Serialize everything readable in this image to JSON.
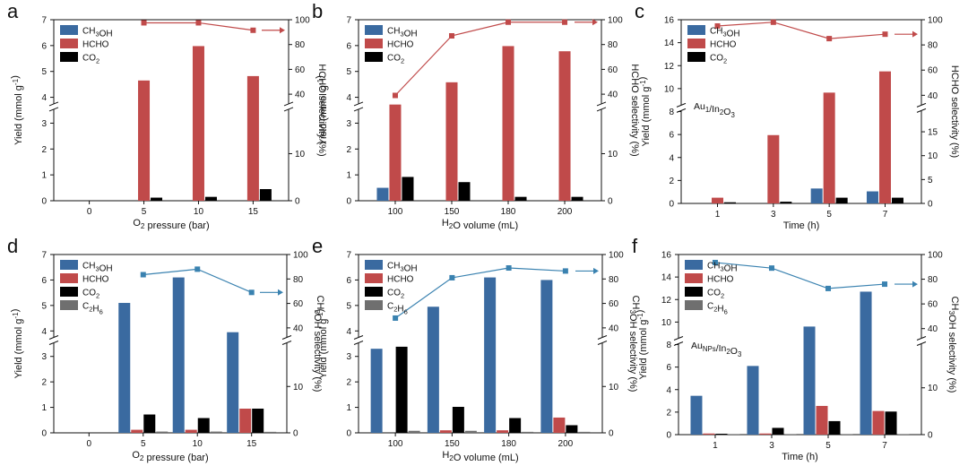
{
  "colors": {
    "CH3OH": "#3a6aa0",
    "HCHO": "#c04a4a",
    "CO2": "#000000",
    "C2H6": "#6f6f6f",
    "sel_red": "#c04a4a",
    "sel_blue": "#3a82b0"
  },
  "chart_data": [
    {
      "panel": "a",
      "type": "bar",
      "categories": [
        "0",
        "5",
        "10",
        "15"
      ],
      "xlabel": "O2 pressure (bar)",
      "ylabel": "Yield (mmol g-1)",
      "ylim": [
        0,
        7
      ],
      "yticks": [
        "0",
        "1",
        "2",
        "3",
        "4",
        "5",
        "6",
        "7"
      ],
      "y2label": "HCHO selectivity (%)",
      "y2_upper_ticks": [
        "40",
        "60",
        "80",
        "100"
      ],
      "y2_lower_ticks": [
        "0",
        "10"
      ],
      "series": [
        {
          "name": "CH3OH",
          "key": "CH3OH",
          "values": [
            0,
            0,
            0,
            0
          ]
        },
        {
          "name": "HCHO",
          "key": "HCHO",
          "values": [
            0,
            4.65,
            5.98,
            4.82
          ]
        },
        {
          "name": "CO2",
          "key": "CO2",
          "values": [
            0,
            0.12,
            0.15,
            0.45
          ]
        }
      ],
      "selectivity": {
        "name": "HCHO selectivity",
        "color_key": "sel_red",
        "marker": "square",
        "values": [
          null,
          97.5,
          97.5,
          91.5
        ]
      },
      "legend": [
        "CH3OH",
        "HCHO",
        "CO2"
      ],
      "annotation": ""
    },
    {
      "panel": "b",
      "type": "bar",
      "categories": [
        "100",
        "150",
        "180",
        "200"
      ],
      "xlabel": "H2O volume (mL)",
      "ylabel": "Yield (mmol g-1)",
      "ylim": [
        0,
        7
      ],
      "yticks": [
        "0",
        "1",
        "2",
        "3",
        "4",
        "5",
        "6",
        "7"
      ],
      "y2label": "HCHO selectivity (%)",
      "y2_upper_ticks": [
        "40",
        "60",
        "80",
        "100"
      ],
      "y2_lower_ticks": [
        "0",
        "10"
      ],
      "series": [
        {
          "name": "CH3OH",
          "key": "CH3OH",
          "values": [
            0.5,
            0,
            0,
            0
          ]
        },
        {
          "name": "HCHO",
          "key": "HCHO",
          "values": [
            3.72,
            4.58,
            5.98,
            5.78
          ]
        },
        {
          "name": "CO2",
          "key": "CO2",
          "values": [
            0.92,
            0.72,
            0.15,
            0.15
          ]
        }
      ],
      "selectivity": {
        "name": "HCHO selectivity",
        "color_key": "sel_red",
        "marker": "square",
        "values": [
          39,
          87,
          98,
          98
        ]
      },
      "legend": [
        "CH3OH",
        "HCHO",
        "CO2"
      ],
      "annotation": ""
    },
    {
      "panel": "c",
      "type": "bar",
      "categories": [
        "1",
        "3",
        "5",
        "7"
      ],
      "xlabel": "Time (h)",
      "ylabel": "Yield (mmol g-1)",
      "ylim": [
        0,
        16
      ],
      "yticks": [
        "0",
        "2",
        "4",
        "6",
        "8",
        "10",
        "12",
        "14",
        "16"
      ],
      "y2label": "HCHO selectivity (%)",
      "y2_upper_ticks": [
        "40",
        "60",
        "80",
        "100"
      ],
      "y2_lower_ticks": [
        "0",
        "5",
        "10",
        "15"
      ],
      "series": [
        {
          "name": "CH3OH",
          "key": "CH3OH",
          "values": [
            0,
            0,
            1.3,
            1.05
          ]
        },
        {
          "name": "HCHO",
          "key": "HCHO",
          "values": [
            0.5,
            5.95,
            9.65,
            11.5
          ]
        },
        {
          "name": "CO2",
          "key": "CO2",
          "values": [
            0.1,
            0.15,
            0.5,
            0.5
          ]
        }
      ],
      "selectivity": {
        "name": "HCHO selectivity",
        "color_key": "sel_red",
        "marker": "square",
        "values": [
          95,
          98,
          85,
          88.5
        ]
      },
      "legend": [
        "CH3OH",
        "HCHO",
        "CO2"
      ],
      "annotation": "Au1/In2O3"
    },
    {
      "panel": "d",
      "type": "bar",
      "categories": [
        "0",
        "5",
        "10",
        "15"
      ],
      "xlabel": "O2 pressure (bar)",
      "ylabel": "Yield (mmol g-1)",
      "ylim": [
        0,
        7
      ],
      "yticks": [
        "0",
        "1",
        "2",
        "3",
        "4",
        "5",
        "6",
        "7"
      ],
      "y2label": "CH3OH selectivity (%)",
      "y2_upper_ticks": [
        "40",
        "60",
        "80",
        "100"
      ],
      "y2_lower_ticks": [
        "0",
        "10"
      ],
      "series": [
        {
          "name": "CH3OH",
          "key": "CH3OH",
          "values": [
            0,
            5.1,
            6.1,
            3.95
          ]
        },
        {
          "name": "HCHO",
          "key": "HCHO",
          "values": [
            0,
            0.12,
            0.12,
            0.95
          ]
        },
        {
          "name": "CO2",
          "key": "CO2",
          "values": [
            0,
            0.72,
            0.58,
            0.95
          ]
        },
        {
          "name": "C2H6",
          "key": "C2H6",
          "values": [
            0,
            0.05,
            0.05,
            0.04
          ]
        }
      ],
      "selectivity": {
        "name": "CH3OH selectivity",
        "color_key": "sel_blue",
        "marker": "square",
        "values": [
          null,
          83.5,
          88,
          69
        ]
      },
      "legend": [
        "CH3OH",
        "HCHO",
        "CO2",
        "C2H6"
      ],
      "annotation": ""
    },
    {
      "panel": "e",
      "type": "bar",
      "categories": [
        "100",
        "150",
        "180",
        "200"
      ],
      "xlabel": "H2O volume (mL)",
      "ylabel": "Yield (mmol g-1)",
      "ylim": [
        0,
        7
      ],
      "yticks": [
        "0",
        "1",
        "2",
        "3",
        "4",
        "5",
        "6",
        "7"
      ],
      "y2label": "CH3OH selectivity (%)",
      "y2_upper_ticks": [
        "40",
        "60",
        "80",
        "100"
      ],
      "y2_lower_ticks": [
        "0",
        "10"
      ],
      "series": [
        {
          "name": "CH3OH",
          "key": "CH3OH",
          "values": [
            3.3,
            4.95,
            6.1,
            6.0
          ]
        },
        {
          "name": "HCHO",
          "key": "HCHO",
          "values": [
            0,
            0.1,
            0.1,
            0.6
          ]
        },
        {
          "name": "CO2",
          "key": "CO2",
          "values": [
            3.38,
            1.02,
            0.58,
            0.3
          ]
        },
        {
          "name": "C2H6",
          "key": "C2H6",
          "values": [
            0.08,
            0.08,
            0.04,
            0.04
          ]
        }
      ],
      "selectivity": {
        "name": "CH3OH selectivity",
        "color_key": "sel_blue",
        "marker": "square",
        "values": [
          48,
          81,
          89,
          86.5
        ]
      },
      "legend": [
        "CH3OH",
        "HCHO",
        "CO2",
        "C2H6"
      ],
      "annotation": ""
    },
    {
      "panel": "f",
      "type": "bar",
      "categories": [
        "1",
        "3",
        "5",
        "7"
      ],
      "xlabel": "Time (h)",
      "ylabel": "Yield (mmol g-1)",
      "ylim": [
        0,
        16
      ],
      "yticks": [
        "0",
        "2",
        "4",
        "6",
        "8",
        "10",
        "12",
        "14",
        "16"
      ],
      "y2label": "CH3OH selectivity (%)",
      "y2_upper_ticks": [
        "40",
        "60",
        "80",
        "100"
      ],
      "y2_lower_ticks": [
        "0",
        "10"
      ],
      "series": [
        {
          "name": "CH3OH",
          "key": "CH3OH",
          "values": [
            3.45,
            6.1,
            9.6,
            12.7
          ]
        },
        {
          "name": "HCHO",
          "key": "HCHO",
          "values": [
            0.1,
            0.1,
            2.55,
            2.1
          ]
        },
        {
          "name": "CO2",
          "key": "CO2",
          "values": [
            0.08,
            0.6,
            1.2,
            2.05
          ]
        },
        {
          "name": "C2H6",
          "key": "C2H6",
          "values": [
            0.05,
            0.05,
            0.05,
            0.05
          ]
        }
      ],
      "selectivity": {
        "name": "CH3OH selectivity",
        "color_key": "sel_blue",
        "marker": "square",
        "values": [
          93.5,
          89,
          72.5,
          76
        ]
      },
      "legend": [
        "CH3OH",
        "HCHO",
        "CO2",
        "C2H6"
      ],
      "annotation": "AuNPs/In2O3"
    }
  ]
}
